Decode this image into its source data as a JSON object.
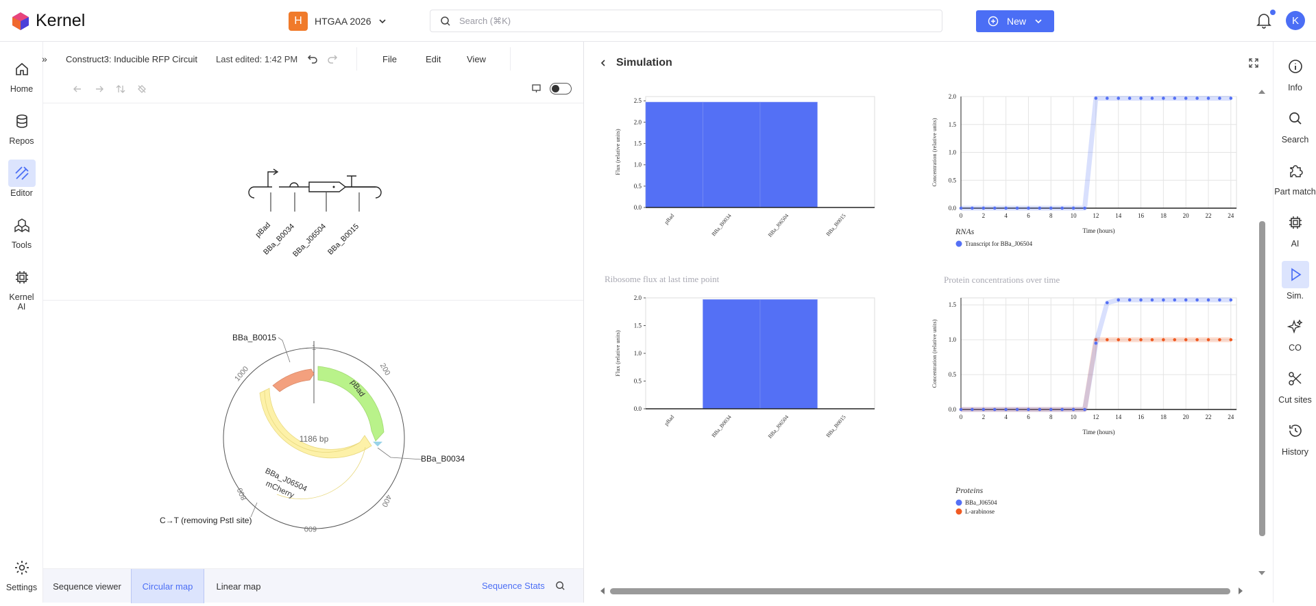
{
  "app": {
    "name": "Kernel",
    "project_initial": "H",
    "project_name": "HTGAA 2026",
    "search_placeholder": "Search (⌘K)",
    "new_label": "New",
    "user_initial": "K"
  },
  "left_nav": [
    {
      "label": "Home",
      "icon": "home-icon"
    },
    {
      "label": "Repos",
      "icon": "database-icon"
    },
    {
      "label": "Editor",
      "icon": "editor-icon"
    },
    {
      "label": "Tools",
      "icon": "tools-icon"
    },
    {
      "label": "Kernel AI",
      "icon": "chip-icon"
    }
  ],
  "settings_label": "Settings",
  "right_nav": [
    {
      "label": "Info",
      "icon": "info-icon"
    },
    {
      "label": "Search",
      "icon": "search-icon"
    },
    {
      "label": "Part match",
      "icon": "puzzle-icon"
    },
    {
      "label": "AI",
      "icon": "chip-icon"
    },
    {
      "label": "Sim.",
      "icon": "play-icon"
    },
    {
      "label": "CO",
      "icon": "sparkle-icon"
    },
    {
      "label": "Cut sites",
      "icon": "scissors-icon"
    },
    {
      "label": "History",
      "icon": "history-icon"
    }
  ],
  "editor": {
    "construct_title": "Construct3: Inducible RFP Circuit",
    "last_edited": "Last edited: 1:42 PM",
    "menus": [
      "File",
      "Edit",
      "View"
    ],
    "linear_parts": [
      "pBad",
      "BBa_B0034",
      "BBa_J06504",
      "BBa_B0015"
    ],
    "circular": {
      "length_label": "1186 bp",
      "tick_labels": [
        "1",
        "200",
        "400",
        "600",
        "800",
        "1000"
      ],
      "feature_labels": [
        "pBad",
        "BBa_J06504",
        "mCherry"
      ],
      "callouts": [
        "BBa_B0015",
        "BBa_B0034",
        "C→T (removing PstI site)"
      ]
    },
    "tabs": [
      "Sequence viewer",
      "Circular map",
      "Linear map"
    ],
    "active_tab": "Circular map",
    "stats_label": "Sequence Stats"
  },
  "simulation": {
    "title": "Simulation",
    "colors": {
      "blue": "#5470f5",
      "orange": "#f05a22"
    }
  },
  "chart_data": [
    {
      "type": "bar",
      "title": "",
      "categories": [
        "pBad",
        "BBa_B0034",
        "BBa_J06504",
        "BBa_B0015"
      ],
      "values": [
        2.47,
        2.47,
        2.47,
        0
      ],
      "ylabel": "Flux (relative units)",
      "ylim": [
        0,
        2.6
      ],
      "yticks": [
        0.0,
        0.5,
        1.0,
        1.5,
        2.0,
        2.5
      ]
    },
    {
      "type": "line",
      "title": "",
      "xlabel": "Time (hours)",
      "ylabel": "Concentration (relative units)",
      "xlim": [
        0,
        24.5
      ],
      "ylim": [
        0,
        2.0
      ],
      "xticks": [
        0,
        2,
        4,
        6,
        8,
        10,
        12,
        14,
        16,
        18,
        20,
        22,
        24
      ],
      "yticks": [
        0.0,
        0.5,
        1.0,
        1.5,
        2.0
      ],
      "legend_title": "RNAs",
      "series": [
        {
          "name": "Transcript for BBa_J06504",
          "x": [
            0,
            1,
            2,
            3,
            4,
            5,
            6,
            7,
            8,
            9,
            10,
            11,
            12,
            13,
            14,
            15,
            16,
            17,
            18,
            19,
            20,
            21,
            22,
            23,
            24
          ],
          "y": [
            0,
            0,
            0,
            0,
            0,
            0,
            0,
            0,
            0,
            0,
            0,
            0,
            1.97,
            1.97,
            1.97,
            1.97,
            1.97,
            1.97,
            1.97,
            1.97,
            1.97,
            1.97,
            1.97,
            1.97,
            1.97
          ]
        }
      ]
    },
    {
      "type": "bar",
      "title": "Ribosome flux at last time point",
      "categories": [
        "pBad",
        "BBa_B0034",
        "BBa_J06504",
        "BBa_B0015"
      ],
      "values": [
        0,
        1.97,
        1.97,
        0
      ],
      "ylabel": "Flux (relative units)",
      "ylim": [
        0,
        2.0
      ],
      "yticks": [
        0.0,
        0.5,
        1.0,
        1.5,
        2.0
      ]
    },
    {
      "type": "line",
      "title": "Protein concentrations over time",
      "xlabel": "Time (hours)",
      "ylabel": "Concentration (relative units)",
      "xlim": [
        0,
        24.5
      ],
      "ylim": [
        0,
        1.6
      ],
      "xticks": [
        0,
        2,
        4,
        6,
        8,
        10,
        12,
        14,
        16,
        18,
        20,
        22,
        24
      ],
      "yticks": [
        0.0,
        0.5,
        1.0,
        1.5
      ],
      "legend_title": "Proteins",
      "series": [
        {
          "name": "BBa_J06504",
          "x": [
            0,
            1,
            2,
            3,
            4,
            5,
            6,
            7,
            8,
            9,
            10,
            11,
            12,
            13,
            14,
            15,
            16,
            17,
            18,
            19,
            20,
            21,
            22,
            23,
            24
          ],
          "y": [
            0,
            0,
            0,
            0,
            0,
            0,
            0,
            0,
            0,
            0,
            0,
            0,
            0.95,
            1.53,
            1.57,
            1.57,
            1.57,
            1.57,
            1.57,
            1.57,
            1.57,
            1.57,
            1.57,
            1.57,
            1.57
          ]
        },
        {
          "name": "L-arabinose",
          "x": [
            0,
            1,
            2,
            3,
            4,
            5,
            6,
            7,
            8,
            9,
            10,
            11,
            12,
            13,
            14,
            15,
            16,
            17,
            18,
            19,
            20,
            21,
            22,
            23,
            24
          ],
          "y": [
            0,
            0,
            0,
            0,
            0,
            0,
            0,
            0,
            0,
            0,
            0,
            0,
            1.0,
            1.0,
            1.0,
            1.0,
            1.0,
            1.0,
            1.0,
            1.0,
            1.0,
            1.0,
            1.0,
            1.0,
            1.0
          ]
        }
      ]
    }
  ]
}
